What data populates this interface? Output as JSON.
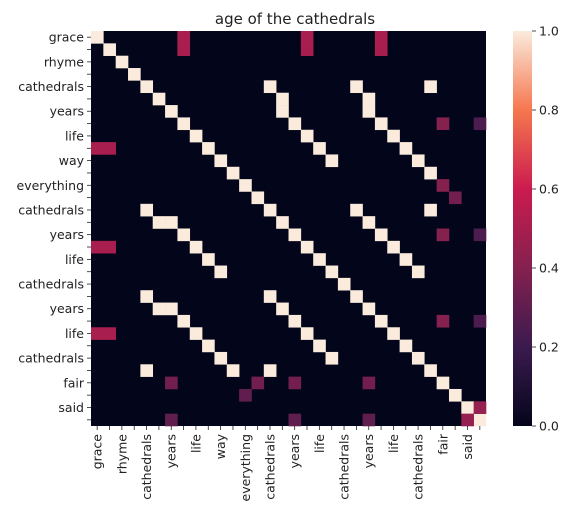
{
  "chart_data": {
    "type": "heatmap",
    "title": "age of the cathedrals",
    "xlabel": "",
    "ylabel": "",
    "row_labels": [
      "grace",
      "",
      "rhyme",
      "",
      "cathedrals",
      "",
      "years",
      "",
      "life",
      "",
      "way",
      "",
      "everything",
      "",
      "cathedrals",
      "",
      "years",
      "",
      "life",
      "",
      "cathedrals",
      "",
      "years",
      "",
      "life",
      "",
      "cathedrals",
      "",
      "fair",
      "",
      "said",
      ""
    ],
    "col_labels": [
      "grace",
      "",
      "rhyme",
      "",
      "cathedrals",
      "",
      "years",
      "",
      "life",
      "",
      "way",
      "",
      "everything",
      "",
      "cathedrals",
      "",
      "years",
      "",
      "life",
      "",
      "cathedrals",
      "",
      "years",
      "",
      "life",
      "",
      "cathedrals",
      "",
      "fair",
      "",
      "said",
      ""
    ],
    "colorbar": {
      "min": 0.0,
      "max": 1.0,
      "ticks": [
        "0.0",
        "0.2",
        "0.4",
        "0.6",
        "0.8",
        "1.0"
      ]
    },
    "cells": [
      [
        0,
        0,
        1
      ],
      [
        1,
        1,
        1
      ],
      [
        2,
        2,
        1
      ],
      [
        3,
        3,
        1
      ],
      [
        4,
        4,
        1
      ],
      [
        5,
        5,
        1
      ],
      [
        6,
        6,
        1
      ],
      [
        7,
        7,
        1
      ],
      [
        8,
        8,
        1
      ],
      [
        9,
        9,
        1
      ],
      [
        10,
        10,
        1
      ],
      [
        11,
        11,
        1
      ],
      [
        12,
        12,
        1
      ],
      [
        13,
        13,
        1
      ],
      [
        14,
        14,
        1
      ],
      [
        15,
        15,
        1
      ],
      [
        16,
        16,
        1
      ],
      [
        17,
        17,
        1
      ],
      [
        18,
        18,
        1
      ],
      [
        19,
        19,
        1
      ],
      [
        20,
        20,
        1
      ],
      [
        21,
        21,
        1
      ],
      [
        22,
        22,
        1
      ],
      [
        23,
        23,
        1
      ],
      [
        24,
        24,
        1
      ],
      [
        25,
        25,
        1
      ],
      [
        26,
        26,
        1
      ],
      [
        27,
        27,
        1
      ],
      [
        28,
        28,
        1
      ],
      [
        29,
        29,
        1
      ],
      [
        30,
        30,
        1
      ],
      [
        31,
        31,
        1
      ],
      [
        0,
        7,
        0.5
      ],
      [
        0,
        17,
        0.5
      ],
      [
        0,
        23,
        0.5
      ],
      [
        1,
        7,
        0.5
      ],
      [
        1,
        17,
        0.5
      ],
      [
        1,
        23,
        0.5
      ],
      [
        4,
        14,
        1
      ],
      [
        4,
        21,
        1
      ],
      [
        4,
        27,
        1
      ],
      [
        14,
        4,
        1
      ],
      [
        14,
        21,
        1
      ],
      [
        14,
        27,
        1
      ],
      [
        21,
        4,
        1
      ],
      [
        21,
        14,
        1
      ],
      [
        27,
        4,
        1
      ],
      [
        27,
        14,
        1
      ],
      [
        6,
        15,
        1
      ],
      [
        6,
        22,
        1
      ],
      [
        15,
        6,
        1
      ],
      [
        15,
        22,
        1
      ],
      [
        22,
        6,
        1
      ],
      [
        22,
        15,
        1
      ],
      [
        7,
        16,
        1
      ],
      [
        7,
        23,
        1
      ],
      [
        16,
        7,
        1
      ],
      [
        16,
        23,
        1
      ],
      [
        23,
        7,
        1
      ],
      [
        23,
        16,
        1
      ],
      [
        8,
        17,
        1
      ],
      [
        8,
        24,
        1
      ],
      [
        17,
        8,
        1
      ],
      [
        17,
        24,
        1
      ],
      [
        24,
        8,
        1
      ],
      [
        24,
        17,
        1
      ],
      [
        9,
        18,
        1
      ],
      [
        9,
        25,
        1
      ],
      [
        18,
        9,
        1
      ],
      [
        18,
        25,
        1
      ],
      [
        25,
        9,
        1
      ],
      [
        25,
        18,
        1
      ],
      [
        10,
        19,
        1
      ],
      [
        10,
        26,
        1
      ],
      [
        19,
        10,
        1
      ],
      [
        19,
        26,
        1
      ],
      [
        26,
        10,
        1
      ],
      [
        26,
        19,
        1
      ],
      [
        5,
        15,
        1
      ],
      [
        5,
        22,
        1
      ],
      [
        15,
        5,
        1
      ],
      [
        22,
        5,
        1
      ],
      [
        11,
        27,
        1
      ],
      [
        27,
        11,
        1
      ],
      [
        7,
        28,
        0.4
      ],
      [
        7,
        31,
        0.25
      ],
      [
        16,
        28,
        0.4
      ],
      [
        16,
        31,
        0.25
      ],
      [
        23,
        28,
        0.4
      ],
      [
        23,
        31,
        0.25
      ],
      [
        9,
        0,
        0.5
      ],
      [
        9,
        1,
        0.5
      ],
      [
        17,
        0,
        0.5
      ],
      [
        17,
        1,
        0.5
      ],
      [
        24,
        0,
        0.5
      ],
      [
        24,
        1,
        0.5
      ],
      [
        12,
        28,
        0.4
      ],
      [
        13,
        29,
        0.35
      ],
      [
        28,
        6,
        0.35
      ],
      [
        28,
        13,
        0.35
      ],
      [
        28,
        16,
        0.35
      ],
      [
        28,
        22,
        0.35
      ],
      [
        29,
        12,
        0.3
      ],
      [
        30,
        31,
        0.45
      ],
      [
        31,
        30,
        0.45
      ],
      [
        31,
        6,
        0.3
      ],
      [
        31,
        16,
        0.3
      ],
      [
        31,
        22,
        0.3
      ]
    ]
  }
}
